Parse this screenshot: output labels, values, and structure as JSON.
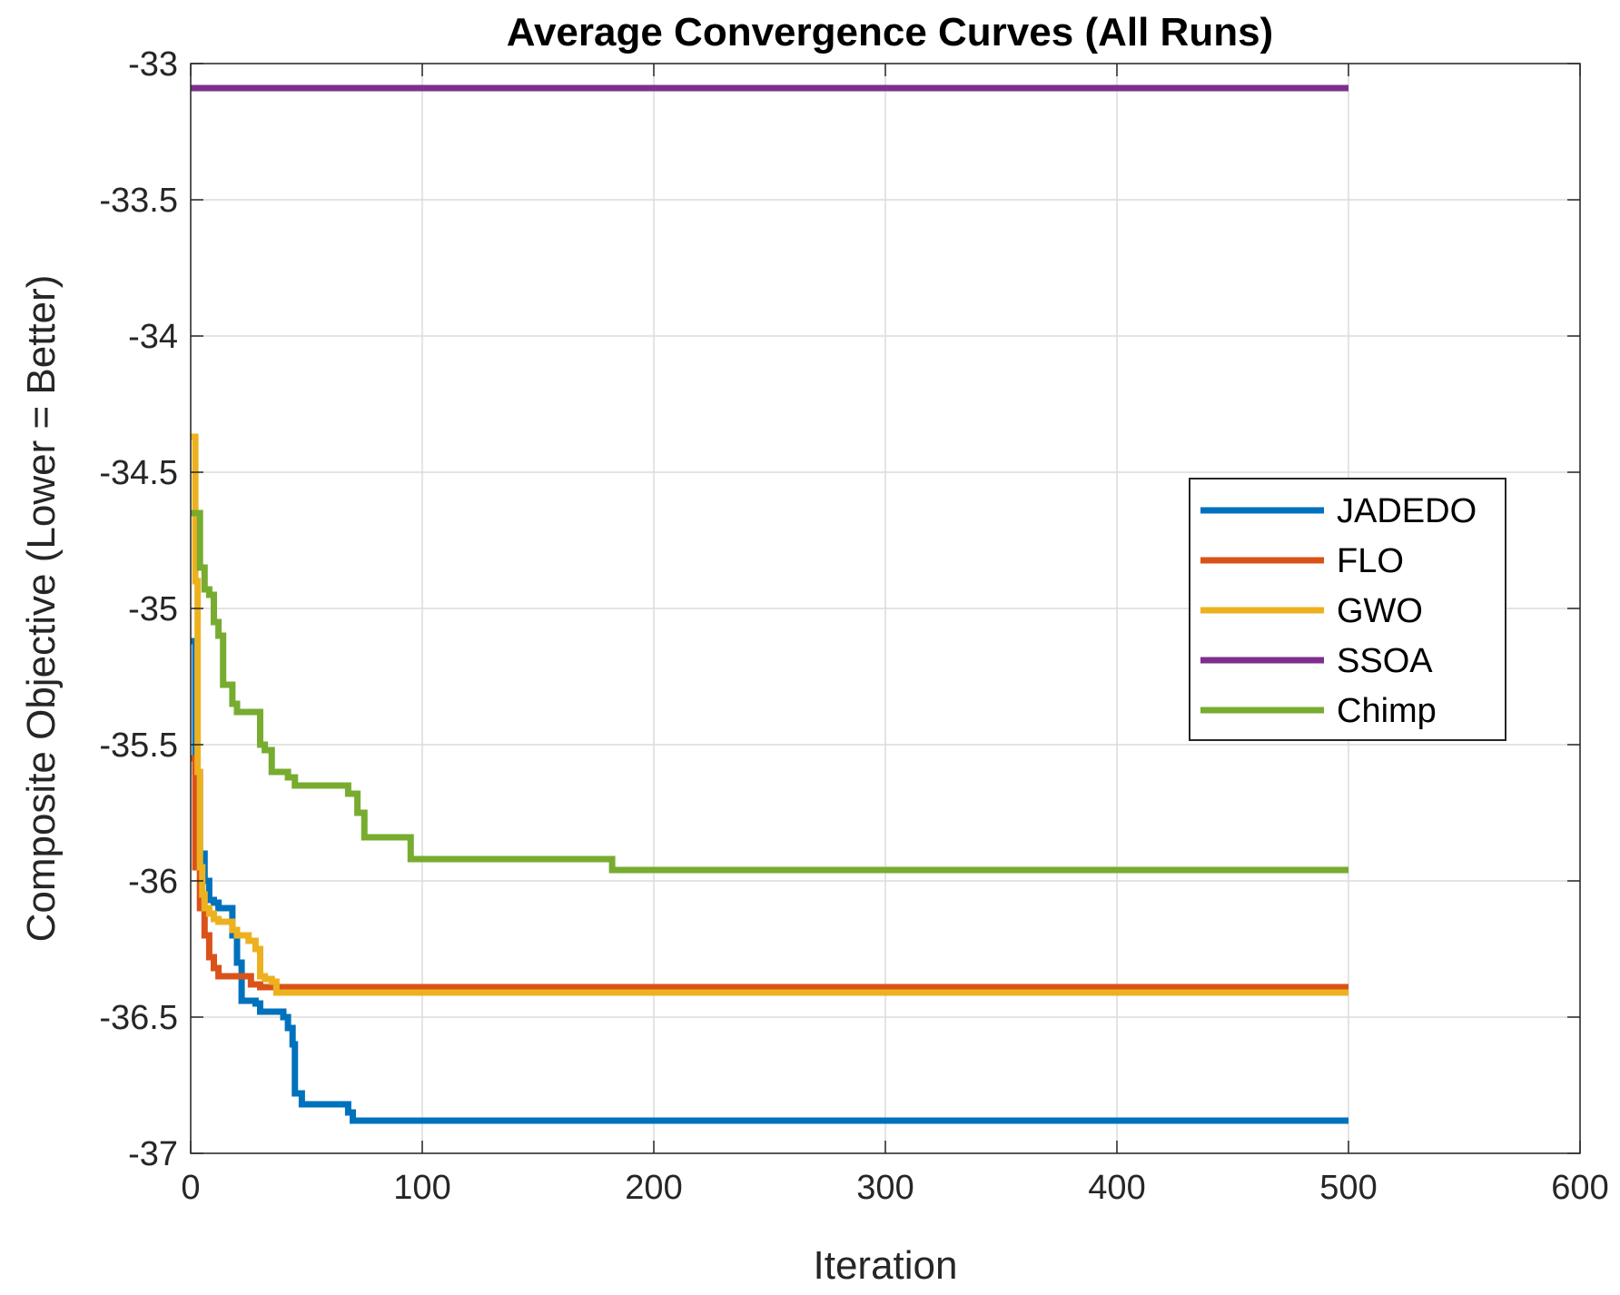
{
  "chart_data": {
    "type": "line",
    "title": "Average Convergence Curves (All Runs)",
    "xlabel": "Iteration",
    "ylabel": "Composite Objective (Lower = Better)",
    "xlim": [
      0,
      600
    ],
    "ylim": [
      -37,
      -33
    ],
    "xticks": [
      0,
      100,
      200,
      300,
      400,
      500,
      600
    ],
    "yticks": [
      -33,
      -33.5,
      -34,
      -34.5,
      -35,
      -35.5,
      -36,
      -36.5,
      -37
    ],
    "xtick_labels": [
      "0",
      "100",
      "200",
      "300",
      "400",
      "500",
      "600"
    ],
    "ytick_labels": [
      "-33",
      "-33.5",
      "-34",
      "-34.5",
      "-35",
      "-35.5",
      "-36",
      "-36.5",
      "-37"
    ],
    "grid": true,
    "legend_position": "right",
    "series": [
      {
        "name": "JADEDO",
        "color": "#0072BD",
        "x": [
          0,
          2,
          4,
          6,
          8,
          10,
          12,
          15,
          18,
          20,
          22,
          24,
          28,
          30,
          35,
          40,
          42,
          44,
          45,
          48,
          55,
          60,
          65,
          68,
          70,
          75,
          100,
          200,
          300,
          400,
          500
        ],
        "y": [
          -35.12,
          -35.6,
          -35.9,
          -36.0,
          -36.07,
          -36.08,
          -36.1,
          -36.1,
          -36.2,
          -36.3,
          -36.44,
          -36.44,
          -36.45,
          -36.48,
          -36.48,
          -36.5,
          -36.54,
          -36.6,
          -36.78,
          -36.82,
          -36.82,
          -36.82,
          -36.82,
          -36.85,
          -36.88,
          -36.88,
          -36.88,
          -36.88,
          -36.88,
          -36.88,
          -36.88
        ]
      },
      {
        "name": "FLO",
        "color": "#D95319",
        "x": [
          0,
          2,
          4,
          6,
          8,
          10,
          12,
          15,
          20,
          25,
          26,
          28,
          30,
          35,
          40,
          100,
          200,
          300,
          400,
          500
        ],
        "y": [
          -35.55,
          -35.95,
          -36.1,
          -36.2,
          -36.28,
          -36.32,
          -36.35,
          -36.35,
          -36.35,
          -36.35,
          -36.38,
          -36.38,
          -36.39,
          -36.39,
          -36.39,
          -36.39,
          -36.39,
          -36.39,
          -36.39,
          -36.39
        ]
      },
      {
        "name": "GWO",
        "color": "#EDB120",
        "x": [
          0,
          1,
          2,
          3,
          4,
          5,
          6,
          8,
          10,
          12,
          15,
          18,
          20,
          25,
          28,
          30,
          32,
          35,
          37,
          40,
          100,
          200,
          300,
          400,
          500
        ],
        "y": [
          -34.37,
          -34.37,
          -34.9,
          -35.6,
          -35.95,
          -36.05,
          -36.1,
          -36.12,
          -36.14,
          -36.15,
          -36.15,
          -36.18,
          -36.2,
          -36.22,
          -36.25,
          -36.35,
          -36.36,
          -36.37,
          -36.41,
          -36.41,
          -36.41,
          -36.41,
          -36.41,
          -36.41,
          -36.41
        ]
      },
      {
        "name": "SSOA",
        "color": "#7E2F8E",
        "x": [
          0,
          100,
          200,
          300,
          400,
          500
        ],
        "y": [
          -33.09,
          -33.09,
          -33.09,
          -33.09,
          -33.09,
          -33.09
        ]
      },
      {
        "name": "Chimp",
        "color": "#77AC30",
        "x": [
          0,
          2,
          4,
          6,
          8,
          10,
          12,
          14,
          16,
          18,
          20,
          25,
          28,
          30,
          32,
          35,
          40,
          42,
          45,
          55,
          65,
          68,
          70,
          72,
          75,
          80,
          95,
          100,
          180,
          182,
          200,
          300,
          400,
          500
        ],
        "y": [
          -34.65,
          -34.65,
          -34.85,
          -34.93,
          -34.95,
          -35.05,
          -35.1,
          -35.28,
          -35.28,
          -35.35,
          -35.38,
          -35.38,
          -35.38,
          -35.5,
          -35.52,
          -35.6,
          -35.6,
          -35.62,
          -35.65,
          -35.65,
          -35.65,
          -35.68,
          -35.68,
          -35.75,
          -35.84,
          -35.84,
          -35.92,
          -35.92,
          -35.92,
          -35.96,
          -35.96,
          -35.96,
          -35.96,
          -35.96
        ]
      }
    ]
  }
}
